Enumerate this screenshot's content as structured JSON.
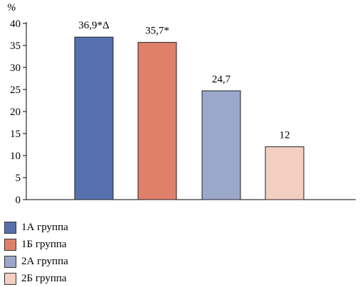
{
  "chart_data": {
    "type": "bar",
    "unit_label": "%",
    "categories": [
      "1А группа",
      "1Б группа",
      "2А группа",
      "2Б группа"
    ],
    "values": [
      36.9,
      35.7,
      24.7,
      12
    ],
    "data_labels": [
      "36,9*Δ",
      "35,7*",
      "24,7",
      "12"
    ],
    "colors": [
      "#5670ad",
      "#e0806a",
      "#9ba8cc",
      "#f3cfc2"
    ],
    "yticks": [
      0,
      5,
      10,
      15,
      20,
      25,
      30,
      35,
      40
    ],
    "ylim": [
      0,
      40
    ],
    "grid": false,
    "legend_position": "bottom-left"
  }
}
